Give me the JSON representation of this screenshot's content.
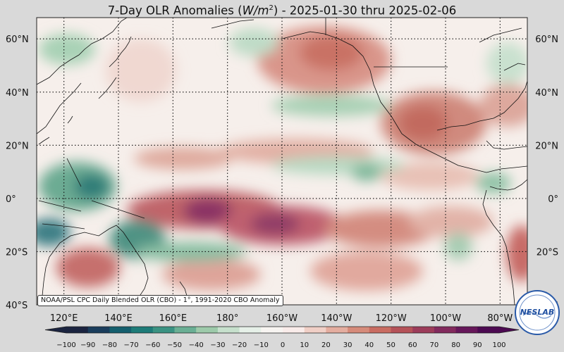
{
  "title": {
    "prefix": "7-Day OLR Anomalies (",
    "unit_base": "W/m",
    "unit_exp": "2",
    "suffix": ") - 2025-01-30 thru 2025-02-06"
  },
  "lat_labels": [
    {
      "lat": 60,
      "text": "60°N"
    },
    {
      "lat": 40,
      "text": "40°N"
    },
    {
      "lat": 20,
      "text": "20°N"
    },
    {
      "lat": 0,
      "text": "0°"
    },
    {
      "lat": -20,
      "text": "20°S"
    },
    {
      "lat": -40,
      "text": "40°S"
    }
  ],
  "lon_labels": [
    {
      "lon": 120,
      "text": "120°E"
    },
    {
      "lon": 140,
      "text": "140°E"
    },
    {
      "lon": 160,
      "text": "160°E"
    },
    {
      "lon": 180,
      "text": "180°"
    },
    {
      "lon": 200,
      "text": "160°W"
    },
    {
      "lon": 220,
      "text": "140°W"
    },
    {
      "lon": 240,
      "text": "120°W"
    },
    {
      "lon": 260,
      "text": "100°W"
    },
    {
      "lon": 280,
      "text": "80°W"
    }
  ],
  "map_extent": {
    "lon_min": 110,
    "lon_max": 290,
    "lat_min": -40,
    "lat_max": 68
  },
  "colorbar": {
    "ticks": [
      "−100",
      "−90",
      "−80",
      "−70",
      "−60",
      "−50",
      "−40",
      "−30",
      "−20",
      "−10",
      "0",
      "10",
      "20",
      "30",
      "40",
      "50",
      "60",
      "70",
      "80",
      "90",
      "100"
    ],
    "min": -100,
    "max": 100,
    "colors": [
      "#1b2440",
      "#1a3d5c",
      "#145f6e",
      "#1d7b78",
      "#3a9282",
      "#6aaf94",
      "#9dcaaa",
      "#c6e0cc",
      "#e6f0e8",
      "#f7f4f1",
      "#f9ecea",
      "#f0cfc6",
      "#e4ad9f",
      "#d68b7a",
      "#c96c61",
      "#b55258",
      "#9c3c5a",
      "#822a5d",
      "#66175a",
      "#4c0a52"
    ]
  },
  "credit": "NOAA/PSL CPC Daily Blended OLR (CBO) - 1°, 1991-2020 CBO Anomaly",
  "logo": {
    "text": "NESLAB",
    "color": "#1f4fa0"
  }
}
